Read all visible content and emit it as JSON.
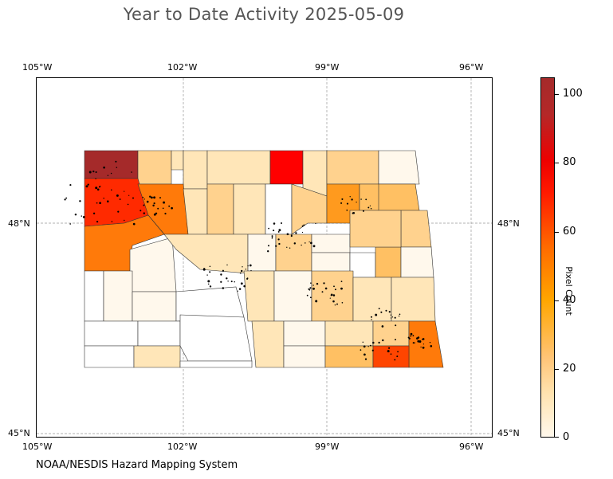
{
  "title": "Year to Date Activity 2025-05-09",
  "map": {
    "lon_labels": [
      "105°W",
      "102°W",
      "99°W",
      "96°W"
    ],
    "lat_labels": [
      "48°N",
      "45°N"
    ],
    "colors": {
      "c0": "#ffffff",
      "c5": "#fff8ec",
      "c10": "#ffe6b8",
      "c15": "#ffd28e",
      "c22": "#ffc063",
      "c35": "#ff9a1e",
      "c45": "#ff7a0a",
      "c60": "#ff4500",
      "c75": "#ff2a00",
      "c85": "#ff0000",
      "c100": "#a52a2a"
    }
  },
  "colorbar": {
    "title": "Pixel Count",
    "ticks": [
      "100",
      "80",
      "60",
      "40",
      "20",
      "0"
    ]
  },
  "credit": "NOAA/NESDIS Hazard Mapping System"
}
